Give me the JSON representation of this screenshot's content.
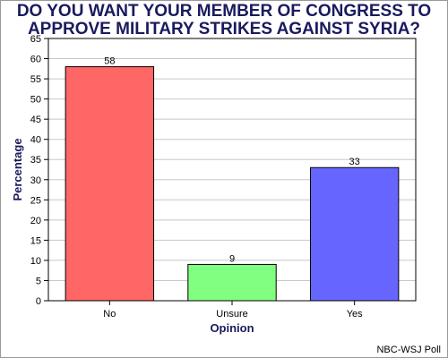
{
  "chart_data": {
    "type": "bar",
    "title_lines": [
      "DO YOU WANT YOUR MEMBER OF CONGRESS TO",
      "APPROVE MILITARY STRIKES AGAINST SYRIA?"
    ],
    "categories": [
      "No",
      "Unsure",
      "Yes"
    ],
    "values": [
      58,
      9,
      33
    ],
    "bar_colors": [
      "#ff6666",
      "#80ff80",
      "#6666ff"
    ],
    "xlabel": "Opinion",
    "ylabel": "Percentage",
    "ylim": [
      0,
      65
    ],
    "yticks": [
      0,
      5,
      10,
      15,
      20,
      25,
      30,
      35,
      40,
      45,
      50,
      55,
      60,
      65
    ],
    "grid": true,
    "data_labels": true,
    "legend": "none"
  },
  "source": "NBC-WSJ Poll"
}
